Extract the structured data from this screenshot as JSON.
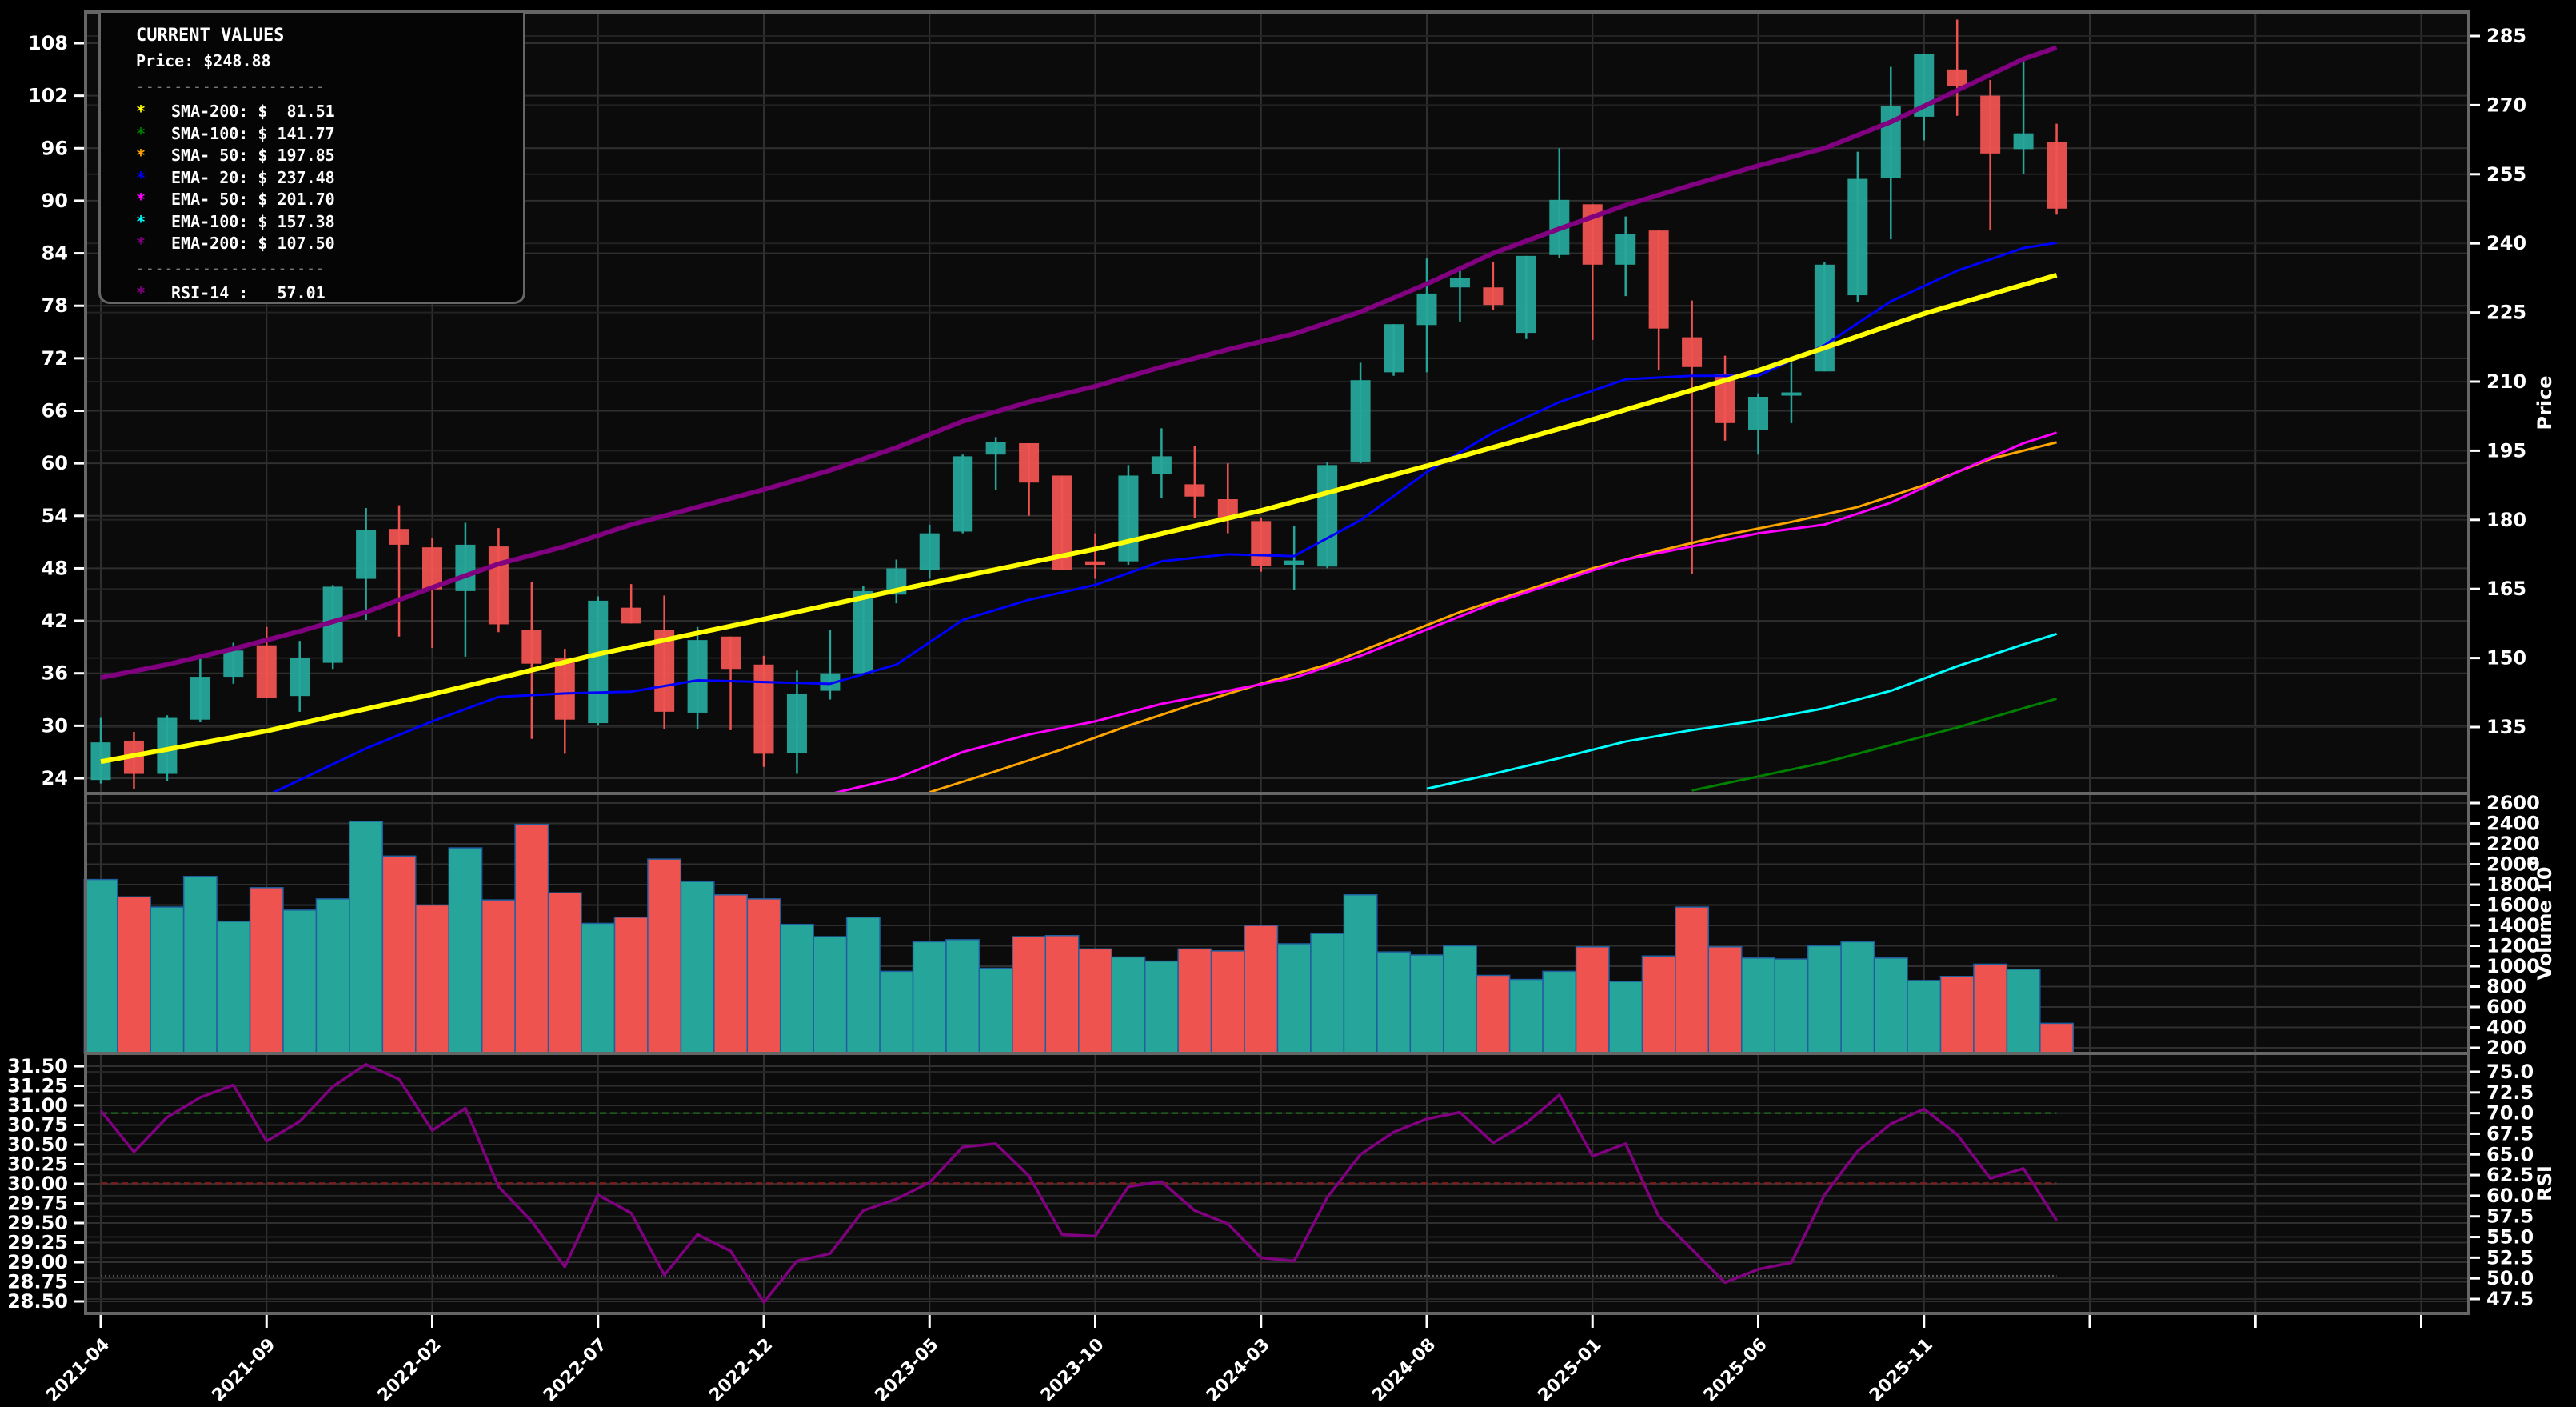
{
  "legend": {
    "title": "CURRENT VALUES",
    "price": "Price: $248.88",
    "separator": "--------------------",
    "items": [
      {
        "name": "SMA-200",
        "text": "SMA-200: $  81.51",
        "color": "#ffff00"
      },
      {
        "name": "SMA-100",
        "text": "SMA-100: $ 141.77",
        "color": "#008000"
      },
      {
        "name": "SMA-50",
        "text": "SMA- 50: $ 197.85",
        "color": "#ffa500"
      },
      {
        "name": "EMA-20",
        "text": "EMA- 20: $ 237.48",
        "color": "#0000ff"
      },
      {
        "name": "EMA-50",
        "text": "EMA- 50: $ 201.70",
        "color": "#ff00ff"
      },
      {
        "name": "EMA-100",
        "text": "EMA-100: $ 157.38",
        "color": "#00ffff"
      },
      {
        "name": "EMA-200",
        "text": "EMA-200: $ 107.50",
        "color": "#800080"
      }
    ],
    "rsi": {
      "text": "RSI-14 :   57.01",
      "color": "#800080"
    },
    "star": "*"
  },
  "colors": {
    "up": "#26a69a",
    "down": "#ef5350",
    "background": "#0b0b0b",
    "grid": "#2f2f2f",
    "frame": "#666666"
  },
  "chart_data": [
    {
      "type": "candlestick",
      "title": "",
      "ylabel": "Price",
      "left_axis": {
        "ticks": [
          24,
          30,
          36,
          42,
          48,
          54,
          60,
          66,
          72,
          78,
          84,
          90,
          96,
          102,
          108
        ],
        "range": [
          22.5,
          111.5
        ]
      },
      "right_axis": {
        "label": "Price",
        "ticks": [
          135,
          150,
          165,
          180,
          195,
          210,
          225,
          240,
          255,
          270,
          285
        ]
      },
      "x_ticks": [
        "2021-04",
        "2021-09",
        "2022-02",
        "2022-07",
        "2022-12",
        "2023-05",
        "2023-10",
        "2024-03",
        "2024-08",
        "2025-01",
        "2025-06",
        "2025-11",
        "",
        "",
        ""
      ],
      "ohlc": [
        [
          23.8,
          30.9,
          23.4,
          28.1
        ],
        [
          28.3,
          29.3,
          22.8,
          24.5
        ],
        [
          24.5,
          31.2,
          23.7,
          30.9
        ],
        [
          30.7,
          38.0,
          30.4,
          35.6
        ],
        [
          35.6,
          39.5,
          34.8,
          38.6
        ],
        [
          39.2,
          41.3,
          33.2,
          33.2
        ],
        [
          33.4,
          39.7,
          31.6,
          37.8
        ],
        [
          37.2,
          46.1,
          36.5,
          45.9
        ],
        [
          46.8,
          54.9,
          42.1,
          52.4
        ],
        [
          52.5,
          55.2,
          40.2,
          50.7
        ],
        [
          50.4,
          51.5,
          38.9,
          45.6
        ],
        [
          45.4,
          53.2,
          37.9,
          50.7
        ],
        [
          50.5,
          52.6,
          40.7,
          41.6
        ],
        [
          41.0,
          46.4,
          28.5,
          37.1
        ],
        [
          37.7,
          38.8,
          26.8,
          30.7
        ],
        [
          30.3,
          44.8,
          30.0,
          44.3
        ],
        [
          43.5,
          46.2,
          41.7,
          41.7
        ],
        [
          41.0,
          44.9,
          29.6,
          31.6
        ],
        [
          31.5,
          41.3,
          29.6,
          39.8
        ],
        [
          40.2,
          38.0,
          29.5,
          36.5
        ],
        [
          37.0,
          38.0,
          25.3,
          26.8
        ],
        [
          26.9,
          36.3,
          24.5,
          33.6
        ],
        [
          34.0,
          41.0,
          33.0,
          36.0
        ],
        [
          36.0,
          46.0,
          35.8,
          45.4
        ],
        [
          45.0,
          49.0,
          44.0,
          48.0
        ],
        [
          47.8,
          53.0,
          46.8,
          52.0
        ],
        [
          52.2,
          61.0,
          52.0,
          60.8
        ],
        [
          61.0,
          63.0,
          57.0,
          62.4
        ],
        [
          62.3,
          62.3,
          54.0,
          57.8
        ],
        [
          58.6,
          58.6,
          47.8,
          47.8
        ],
        [
          48.8,
          52.0,
          46.8,
          48.4
        ],
        [
          48.8,
          59.8,
          48.4,
          58.6
        ],
        [
          58.8,
          64.0,
          56.0,
          60.8
        ],
        [
          57.6,
          62.0,
          53.8,
          56.2
        ],
        [
          55.9,
          60.0,
          52.0,
          53.8
        ],
        [
          53.4,
          53.8,
          47.6,
          48.3
        ],
        [
          48.4,
          52.8,
          45.5,
          48.9
        ],
        [
          48.2,
          60.1,
          48.0,
          59.8
        ],
        [
          60.2,
          71.5,
          60.0,
          69.5
        ],
        [
          70.4,
          75.0,
          70.0,
          75.9
        ],
        [
          75.8,
          83.4,
          70.4,
          79.4
        ],
        [
          80.1,
          82.5,
          76.2,
          81.2
        ],
        [
          80.1,
          83.0,
          77.5,
          78.1
        ],
        [
          74.9,
          83.3,
          74.2,
          83.7
        ],
        [
          83.8,
          96.0,
          83.5,
          90.1
        ],
        [
          89.6,
          89.6,
          74.1,
          82.7
        ],
        [
          82.7,
          88.2,
          79.1,
          86.2
        ],
        [
          86.6,
          86.6,
          70.6,
          75.4
        ],
        [
          74.4,
          78.6,
          47.4,
          71.0
        ],
        [
          70.2,
          72.3,
          62.6,
          64.6
        ],
        [
          63.8,
          68.0,
          61.0,
          67.6
        ],
        [
          67.8,
          71.5,
          64.6,
          68.1
        ],
        [
          70.5,
          83.0,
          70.5,
          82.7
        ],
        [
          79.2,
          95.6,
          78.4,
          92.5
        ],
        [
          92.6,
          105.3,
          85.6,
          100.8
        ],
        [
          99.6,
          106.6,
          96.9,
          106.8
        ],
        [
          105.0,
          110.7,
          99.7,
          103.1
        ],
        [
          102.0,
          103.8,
          86.6,
          95.4
        ],
        [
          95.9,
          106.2,
          93.1,
          97.7
        ],
        [
          96.7,
          98.8,
          88.4,
          89.1
        ]
      ],
      "indicators": {
        "SMA-200": {
          "color": "#ffff00",
          "width": 6,
          "points": [
            [
              0,
              25.9
            ],
            [
              5,
              29.4
            ],
            [
              10,
              33.6
            ],
            [
              15,
              38.2
            ],
            [
              20,
              42.2
            ],
            [
              25,
              46.3
            ],
            [
              30,
              50.2
            ],
            [
              35,
              54.6
            ],
            [
              40,
              59.7
            ],
            [
              45,
              65.0
            ],
            [
              50,
              70.6
            ],
            [
              55,
              77.1
            ],
            [
              59,
              81.5
            ]
          ]
        },
        "EMA-20": {
          "color": "#0000ff",
          "width": 3,
          "points": [
            [
              5,
              22.0
            ],
            [
              8,
              27.4
            ],
            [
              10,
              30.5
            ],
            [
              12,
              33.3
            ],
            [
              14,
              33.7
            ],
            [
              16,
              33.9
            ],
            [
              18,
              35.2
            ],
            [
              20,
              35.0
            ],
            [
              22,
              34.8
            ],
            [
              24,
              37.0
            ],
            [
              26,
              42.1
            ],
            [
              28,
              44.4
            ],
            [
              30,
              46.1
            ],
            [
              32,
              48.8
            ],
            [
              34,
              49.6
            ],
            [
              36,
              49.4
            ],
            [
              38,
              53.5
            ],
            [
              40,
              59.0
            ],
            [
              42,
              63.5
            ],
            [
              44,
              67.0
            ],
            [
              46,
              69.6
            ],
            [
              48,
              70.0
            ],
            [
              50,
              70.0
            ],
            [
              52,
              73.5
            ],
            [
              54,
              78.5
            ],
            [
              56,
              82.0
            ],
            [
              58,
              84.6
            ],
            [
              59,
              85.2
            ]
          ]
        },
        "EMA-50": {
          "color": "#ff00ff",
          "width": 3,
          "points": [
            [
              22,
              22.2
            ],
            [
              24,
              24.0
            ],
            [
              26,
              27.0
            ],
            [
              28,
              29.0
            ],
            [
              30,
              30.5
            ],
            [
              32,
              32.5
            ],
            [
              34,
              34.0
            ],
            [
              36,
              35.5
            ],
            [
              38,
              38.0
            ],
            [
              40,
              41.0
            ],
            [
              42,
              44.0
            ],
            [
              44,
              46.5
            ],
            [
              46,
              49.0
            ],
            [
              48,
              50.5
            ],
            [
              50,
              52.0
            ],
            [
              52,
              53.0
            ],
            [
              54,
              55.5
            ],
            [
              56,
              59.0
            ],
            [
              58,
              62.3
            ],
            [
              59,
              63.5
            ]
          ]
        },
        "SMA-50": {
          "color": "#ffa500",
          "width": 3,
          "points": [
            [
              25,
              22.4
            ],
            [
              27,
              24.8
            ],
            [
              29,
              27.3
            ],
            [
              31,
              30.0
            ],
            [
              33,
              32.5
            ],
            [
              35,
              34.8
            ],
            [
              37,
              37.0
            ],
            [
              39,
              40.0
            ],
            [
              41,
              43.0
            ],
            [
              43,
              45.5
            ],
            [
              45,
              48.0
            ],
            [
              47,
              50.0
            ],
            [
              49,
              51.8
            ],
            [
              51,
              53.3
            ],
            [
              53,
              55.0
            ],
            [
              55,
              57.5
            ],
            [
              57,
              60.5
            ],
            [
              59,
              62.4
            ]
          ]
        },
        "EMA-100": {
          "color": "#00ffff",
          "width": 3,
          "points": [
            [
              40,
              22.8
            ],
            [
              42,
              24.5
            ],
            [
              44,
              26.3
            ],
            [
              46,
              28.2
            ],
            [
              48,
              29.5
            ],
            [
              50,
              30.6
            ],
            [
              52,
              32.0
            ],
            [
              54,
              34.0
            ],
            [
              56,
              36.8
            ],
            [
              58,
              39.3
            ],
            [
              59,
              40.5
            ]
          ]
        },
        "SMA-100": {
          "color": "#008000",
          "width": 3,
          "points": [
            [
              48,
              22.6
            ],
            [
              50,
              24.2
            ],
            [
              52,
              25.8
            ],
            [
              54,
              27.8
            ],
            [
              56,
              29.8
            ],
            [
              58,
              32.0
            ],
            [
              59,
              33.1
            ]
          ]
        },
        "EMA-200": {
          "color": "#800080",
          "width": 6,
          "points": [
            [
              0,
              35.5
            ],
            [
              2,
              37.0
            ],
            [
              4,
              38.8
            ],
            [
              6,
              40.8
            ],
            [
              8,
              43.0
            ],
            [
              10,
              45.8
            ],
            [
              12,
              48.5
            ],
            [
              14,
              50.5
            ],
            [
              16,
              53.0
            ],
            [
              18,
              55.0
            ],
            [
              20,
              57.0
            ],
            [
              22,
              59.2
            ],
            [
              24,
              61.8
            ],
            [
              26,
              64.8
            ],
            [
              28,
              67.0
            ],
            [
              30,
              68.8
            ],
            [
              32,
              71.0
            ],
            [
              34,
              73.0
            ],
            [
              36,
              74.8
            ],
            [
              38,
              77.3
            ],
            [
              40,
              80.5
            ],
            [
              42,
              84.0
            ],
            [
              44,
              86.8
            ],
            [
              46,
              89.5
            ],
            [
              48,
              91.8
            ],
            [
              50,
              94.0
            ],
            [
              52,
              96.0
            ],
            [
              54,
              99.0
            ],
            [
              56,
              102.6
            ],
            [
              58,
              106.2
            ],
            [
              59,
              107.5
            ]
          ]
        }
      }
    },
    {
      "type": "bar",
      "ylabel": "Volume  10^6",
      "axis": {
        "ticks": [
          200,
          400,
          600,
          800,
          1000,
          1200,
          1400,
          1600,
          1800,
          2000,
          2200,
          2400,
          2600
        ],
        "range": [
          100,
          2650
        ]
      },
      "values": [
        1850,
        1680,
        1580,
        1880,
        1440,
        1770,
        1550,
        1660,
        2420,
        2080,
        1600,
        2160,
        1650,
        2390,
        1720,
        1420,
        1480,
        2050,
        1830,
        1700,
        1660,
        1410,
        1290,
        1480,
        950,
        1240,
        1260,
        980,
        1290,
        1300,
        1170,
        1090,
        1050,
        1170,
        1150,
        1400,
        1220,
        1320,
        1700,
        1140,
        1110,
        1200,
        910,
        870,
        950,
        1190,
        850,
        1100,
        1580,
        1190,
        1080,
        1070,
        1200,
        1240,
        1080,
        860,
        900,
        1020,
        970,
        440
      ]
    },
    {
      "type": "line",
      "ylabel": "RSI",
      "left_axis": {
        "ticks": [
          "28.50",
          "28.75",
          "29.00",
          "29.25",
          "29.50",
          "29.75",
          "30.00",
          "30.25",
          "30.50",
          "30.75",
          "31.00",
          "31.25",
          "31.50"
        ]
      },
      "right_axis": {
        "ticks": [
          "47.5",
          "50.0",
          "52.5",
          "55.0",
          "57.5",
          "60.0",
          "62.5",
          "65.0",
          "67.5",
          "70.0",
          "72.5",
          "75.0"
        ],
        "range": [
          45.8,
          77.2
        ]
      },
      "reference_lines": [
        {
          "value": 70,
          "color": "#1f5f1f",
          "style": "dashed"
        },
        {
          "value": 61.5,
          "color": "#7a1f1f",
          "style": "dashed"
        },
        {
          "value": 50.3,
          "color": "#555555",
          "style": "dotted"
        }
      ],
      "color": "#800080",
      "values": [
        70.3,
        65.3,
        69.5,
        71.9,
        73.4,
        66.6,
        69.0,
        73.2,
        75.9,
        74.1,
        67.9,
        70.6,
        61.1,
        56.9,
        51.4,
        60.1,
        57.9,
        50.4,
        55.3,
        53.3,
        47.1,
        52.1,
        53.0,
        58.2,
        59.6,
        61.6,
        65.9,
        66.3,
        62.4,
        55.3,
        55.1,
        61.1,
        61.7,
        58.2,
        56.6,
        52.5,
        52.1,
        59.8,
        65.0,
        67.7,
        69.3,
        70.1,
        66.4,
        68.8,
        72.2,
        64.8,
        66.3,
        57.5,
        53.5,
        49.5,
        51.1,
        51.9,
        60.1,
        65.4,
        68.7,
        70.5,
        67.4,
        62.1,
        63.3,
        57.0
      ]
    }
  ]
}
